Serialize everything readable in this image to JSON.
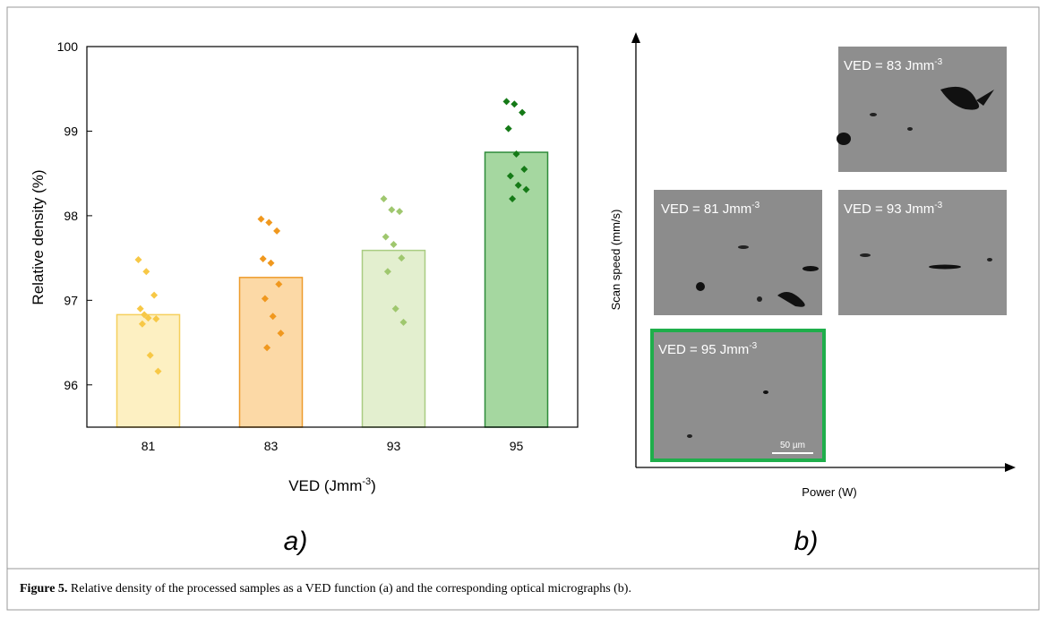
{
  "chart_data": {
    "type": "bar",
    "y_label": "Relative density (%)",
    "x_label": {
      "text": "VED (Jmm",
      "sup": "-3",
      "tail": ")"
    },
    "categories": [
      "81",
      "83",
      "93",
      "95"
    ],
    "values": [
      96.83,
      97.27,
      97.59,
      98.75
    ],
    "bar_colors": [
      "#fdf0c2",
      "#fcd9a6",
      "#e3efcf",
      "#a5d7a0"
    ],
    "edge_colors": [
      "#f5cf5c",
      "#ee9b2c",
      "#a9cc82",
      "#2e8b3a"
    ],
    "point_colors": [
      "#f7c846",
      "#f0981e",
      "#9fc76e",
      "#157a17"
    ],
    "points": [
      [
        97.48,
        97.34,
        97.06,
        96.9,
        96.79,
        96.78,
        96.72,
        96.35,
        96.16,
        96.83
      ],
      [
        97.96,
        97.92,
        97.82,
        97.49,
        97.44,
        97.19,
        97.02,
        96.81,
        96.61,
        96.44
      ],
      [
        98.2,
        98.07,
        98.05,
        97.75,
        97.66,
        97.5,
        97.34,
        96.9,
        96.74
      ],
      [
        99.35,
        99.32,
        99.22,
        99.03,
        98.73,
        98.55,
        98.47,
        98.36,
        98.31,
        98.2
      ]
    ],
    "ylim": [
      95.5,
      100
    ],
    "yticks": [
      96,
      97,
      98,
      99,
      100
    ]
  },
  "panel_b": {
    "y_axis": "Scan speed (mm/s)",
    "x_axis": "Power (W)",
    "micrographs": [
      {
        "text": "VED = 83 Jmm",
        "sup": "-3"
      },
      {
        "text": "VED = 81 Jmm",
        "sup": "-3"
      },
      {
        "text": "VED = 93 Jmm",
        "sup": "-3"
      },
      {
        "text": "VED = 95 Jmm",
        "sup": "-3"
      }
    ],
    "scale_bar": "50 µm"
  },
  "panel_labels": [
    "a)",
    "b)"
  ],
  "caption": {
    "label": "Figure 5.",
    "text": " Relative density of the processed samples as a VED function (a) and the corresponding optical micrographs (b)."
  }
}
